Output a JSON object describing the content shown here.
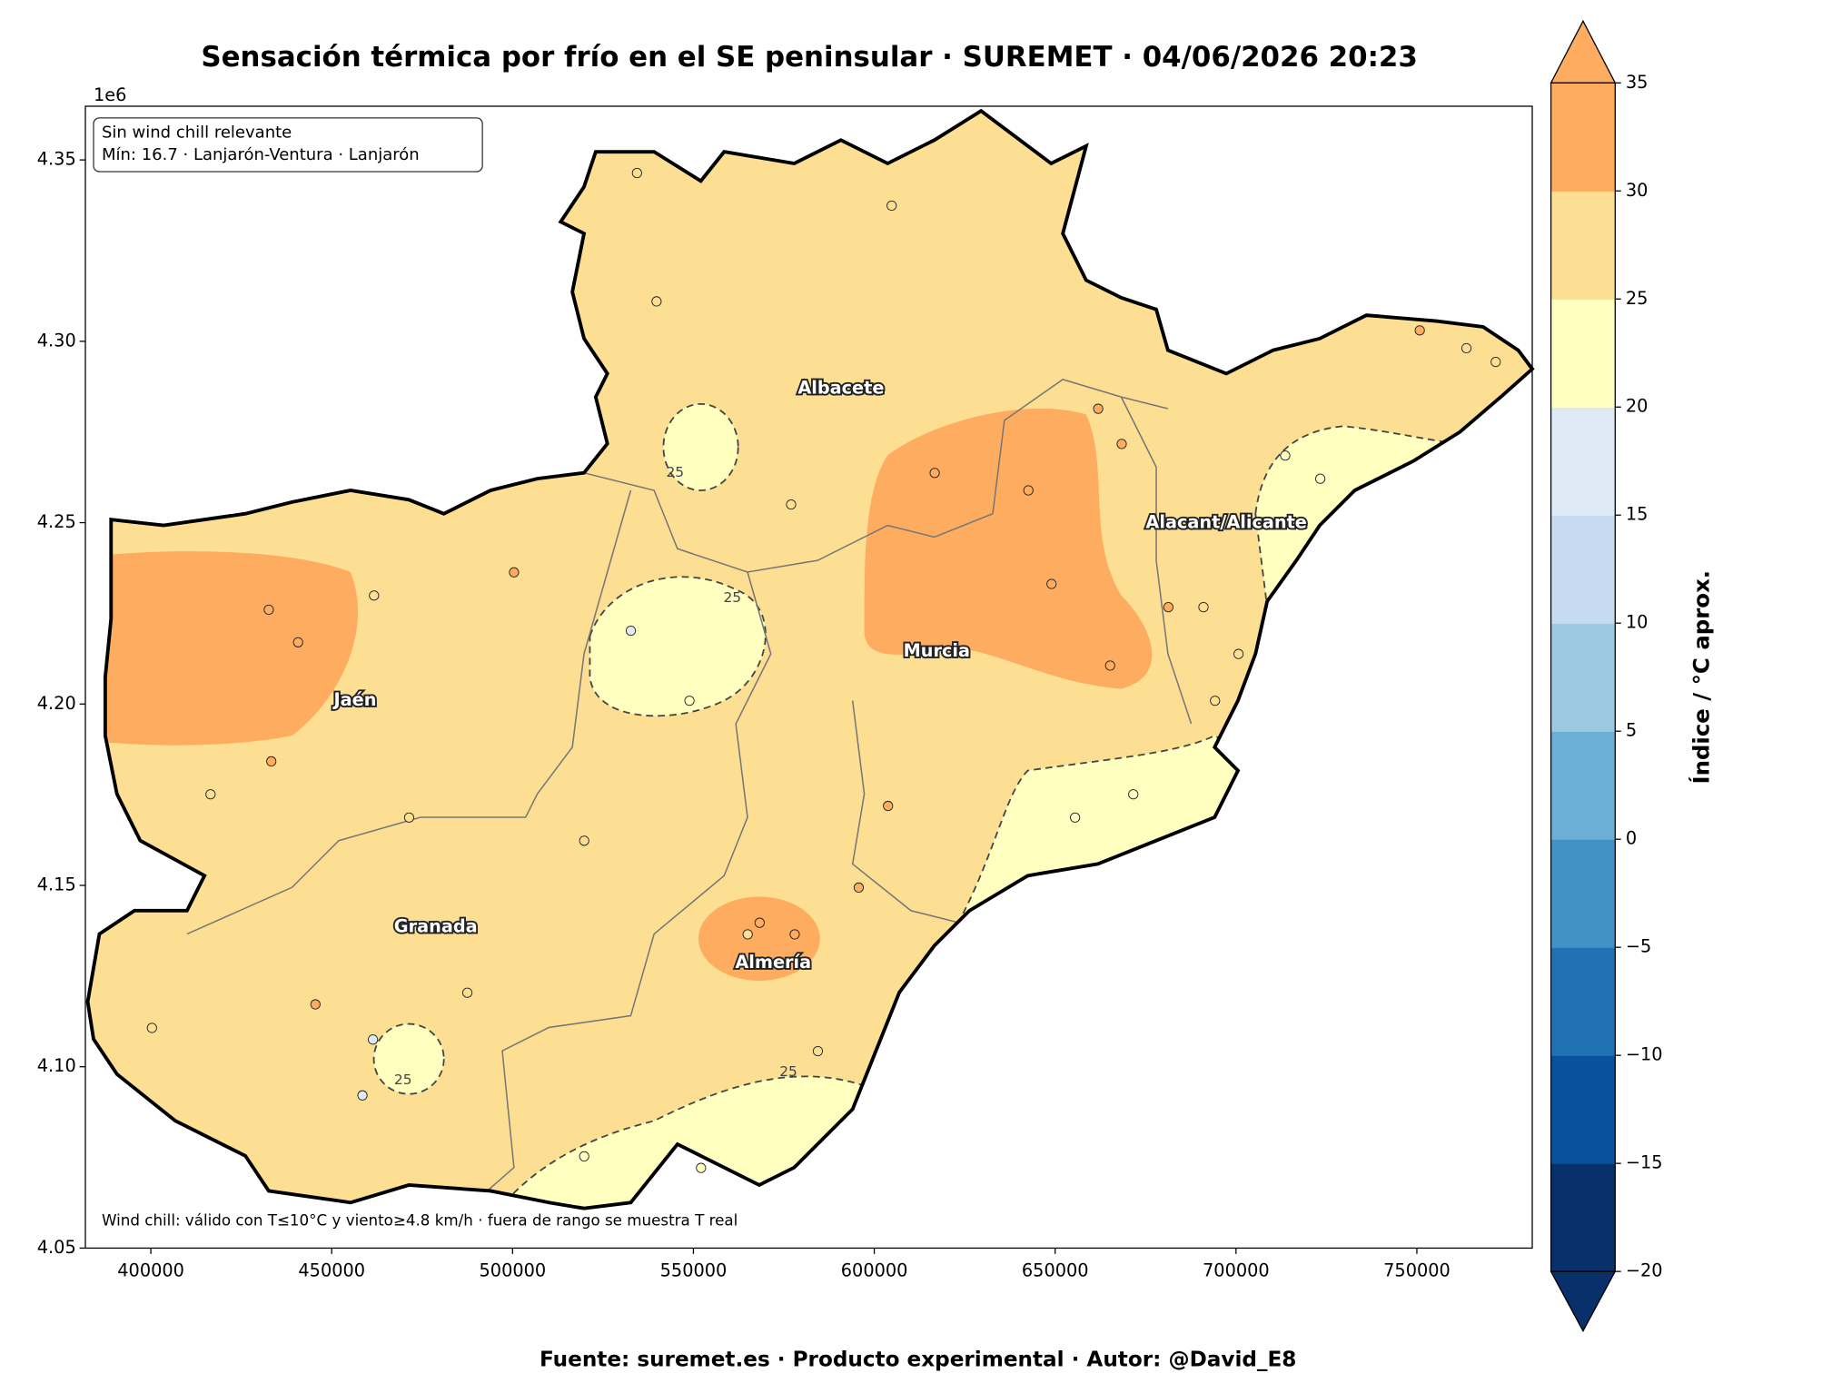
{
  "chart_data": {
    "type": "map",
    "title": "Sensación térmica por frío en el SE peninsular · SUREMET · 04/06/2026 20:23",
    "y_offset_label": "1e6",
    "xlim": [
      381900,
      781900
    ],
    "ylim": [
      4.05,
      4.3648
    ],
    "xticks": [
      400000,
      450000,
      500000,
      550000,
      600000,
      650000,
      700000,
      750000
    ],
    "yticks": [
      4.05,
      {
        "value": 4.1,
        "label": "4.10"
      },
      4.15,
      {
        "value": 4.2,
        "label": "4.20"
      },
      4.25,
      {
        "value": 4.3,
        "label": "4.30"
      },
      4.35
    ],
    "info_box": [
      "Sin wind chill relevante",
      "Mín: 16.7 · Lanjarón-Ventura · Lanjarón"
    ],
    "note": "Wind chill: válido con T≤10°C y viento≥4.8 km/h · fuera de rango se muestra T real",
    "cities": [
      "Albacete",
      "Alacant/Alicante",
      "Murcia",
      "Jaén",
      "Granada",
      "Almería"
    ],
    "contour_level": 25,
    "colorbar": {
      "label": "Índice / °C aprox.",
      "extend": "both",
      "ticks": [
        {
          "value": -20,
          "label": "−20"
        },
        {
          "value": -15,
          "label": "−15"
        },
        {
          "value": -10,
          "label": "−10"
        },
        {
          "value": -5,
          "label": "−5"
        },
        0,
        5,
        10,
        15,
        20,
        25,
        30,
        35
      ],
      "colors": [
        "#08306b",
        "#08519c",
        "#2171b5",
        "#4292c6",
        "#6baed6",
        "#9ecae1",
        "#c6dbef",
        "#deebf7",
        "#ffffbf",
        "#fddf94",
        "#fdac60"
      ]
    },
    "stations": {
      "x": [
        534400,
        604800,
        539800,
        577000,
        432600,
        440700,
        416500,
        433300,
        461700,
        500400,
        532700,
        548900,
        616700,
        642600,
        661900,
        668400,
        649000,
        665200,
        681300,
        691000,
        700700,
        694200,
        723300,
        713600,
        750800,
        763700,
        771800,
        655500,
        671600,
        568300,
        578000,
        565000,
        461400,
        458500,
        445500,
        519800,
        584400,
        552100,
        519800,
        603800,
        595700,
        487500,
        400300,
        471400
      ],
      "y": [
        4.3464,
        4.3374,
        4.311,
        4.255,
        4.226,
        4.217,
        4.1751,
        4.1842,
        4.2299,
        4.2363,
        4.2202,
        4.2009,
        4.2637,
        4.2589,
        4.2814,
        4.2717,
        4.2331,
        4.2106,
        4.2267,
        4.2267,
        4.2138,
        4.2009,
        4.2621,
        4.2685,
        4.303,
        4.2981,
        4.2943,
        4.1687,
        4.1751,
        4.1397,
        4.1365,
        4.1365,
        4.1075,
        4.0921,
        4.1172,
        4.1623,
        4.1043,
        4.0721,
        4.0753,
        4.1719,
        4.1494,
        4.1204,
        4.1107,
        4.1687
      ],
      "values": [
        27,
        27,
        27,
        27,
        32,
        32,
        27,
        32,
        27,
        32,
        19,
        22,
        32,
        32,
        32,
        32,
        32,
        32,
        32,
        27,
        27,
        27,
        22,
        22,
        32,
        27,
        27,
        22,
        22,
        32,
        32,
        27,
        16.7,
        19,
        32,
        27,
        27,
        22,
        22,
        32,
        32,
        27,
        27,
        27
      ]
    },
    "footer": "Fuente: suremet.es · Producto experimental · Autor: @David_E8"
  }
}
